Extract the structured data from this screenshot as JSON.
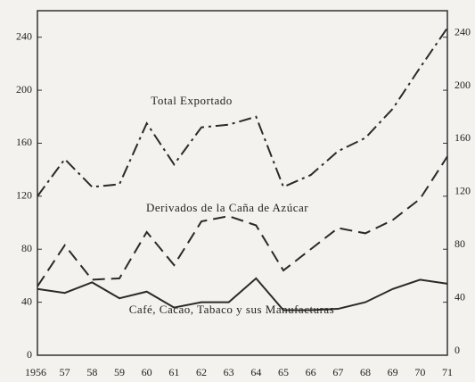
{
  "chart_data": {
    "type": "line",
    "categories": [
      "1956",
      "57",
      "58",
      "59",
      "60",
      "61",
      "62",
      "63",
      "64",
      "65",
      "66",
      "67",
      "68",
      "69",
      "70",
      "71"
    ],
    "ylim": [
      0,
      260
    ],
    "yticks": [
      0,
      40,
      80,
      120,
      160,
      200,
      240
    ],
    "y2lim": [
      0,
      260
    ],
    "y2ticks": [
      0,
      40,
      80,
      120,
      160,
      200,
      240
    ],
    "series": [
      {
        "name": "Total Exportado",
        "color": "#2a2a2a",
        "dash": "dashdot",
        "values": [
          120,
          148,
          127,
          129,
          175,
          144,
          172,
          174,
          180,
          127,
          136,
          154,
          164,
          186,
          217,
          247
        ]
      },
      {
        "name": "Derivados de la Caña de Azúcar",
        "color": "#2a2a2a",
        "dash": "dashed",
        "values": [
          52,
          83,
          57,
          58,
          93,
          68,
          101,
          105,
          98,
          64,
          80,
          96,
          92,
          102,
          118,
          150
        ]
      },
      {
        "name": "Café, Cacao, Tabaco y sus Manufacturas",
        "color": "#2a2a2a",
        "dash": "solid",
        "values": [
          50,
          47,
          55,
          43,
          48,
          36,
          40,
          40,
          58,
          34,
          34,
          35,
          40,
          50,
          57,
          54
        ]
      }
    ]
  }
}
